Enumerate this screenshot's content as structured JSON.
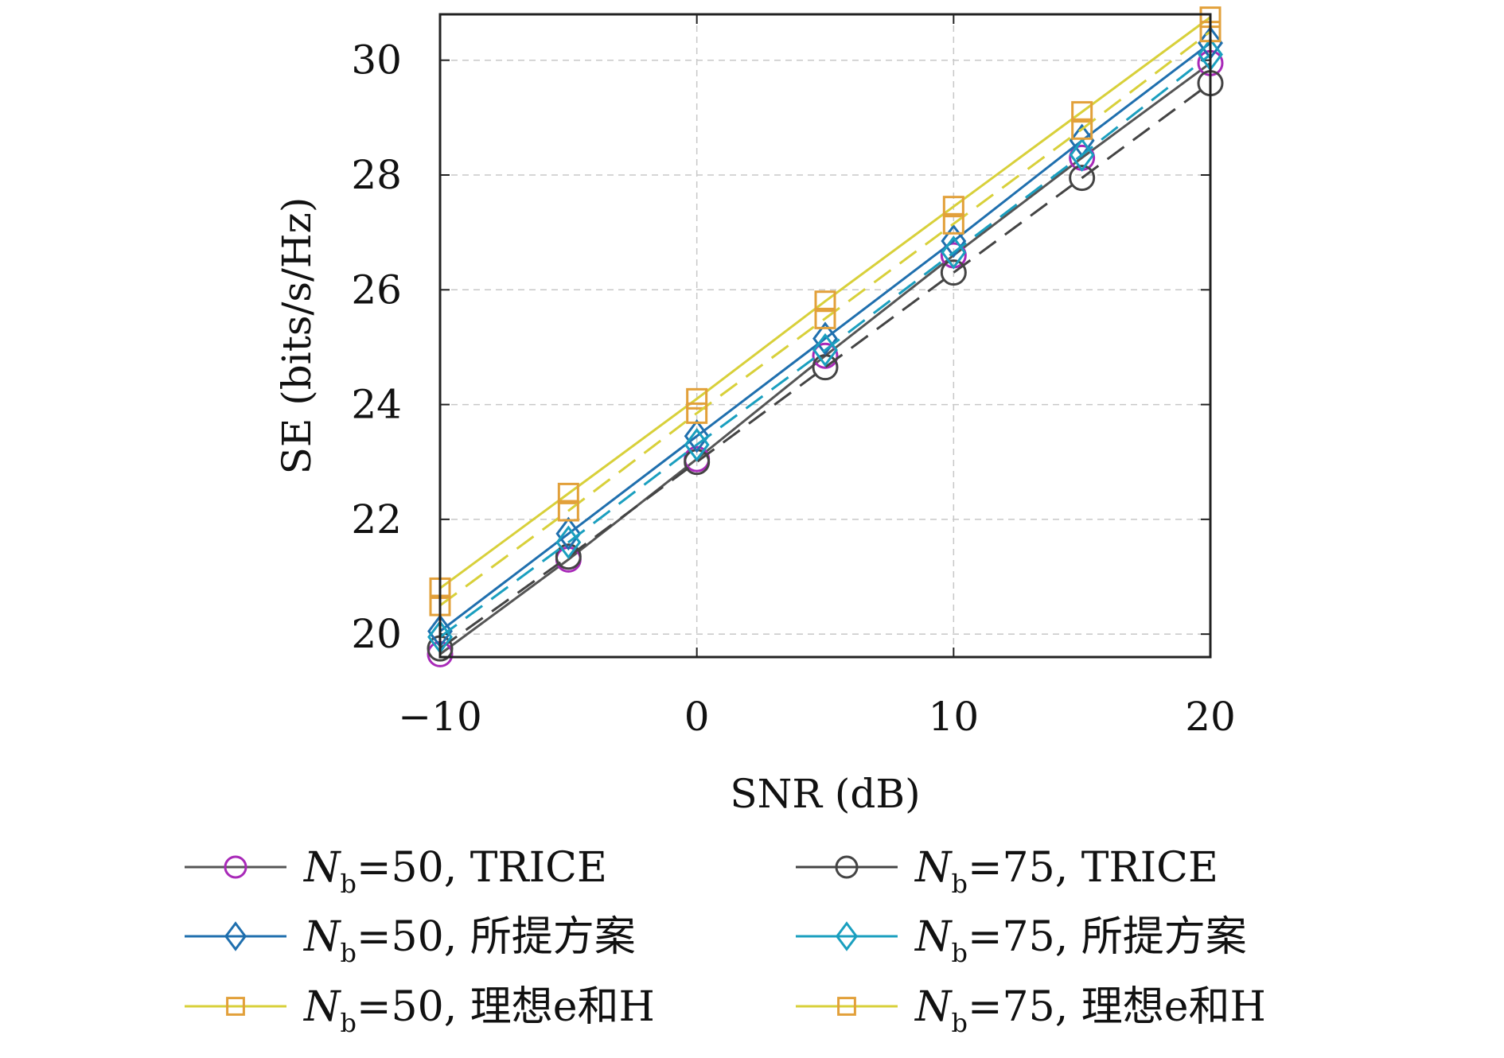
{
  "chart_data": {
    "type": "line",
    "title": "",
    "xlabel": "SNR (dB)",
    "ylabel": "SE (bits/s/Hz)",
    "xlim": [
      -10,
      20
    ],
    "ylim": [
      19.6,
      30.8
    ],
    "xticks": [
      -10,
      0,
      10,
      20
    ],
    "xtick_labels": [
      "−10",
      "0",
      "10",
      "20"
    ],
    "yticks": [
      20,
      22,
      24,
      26,
      28,
      30
    ],
    "ytick_labels": [
      "20",
      "22",
      "24",
      "26",
      "28",
      "30"
    ],
    "grid": true,
    "legend_position": "bottom",
    "x": [
      -10,
      -5,
      0,
      5,
      10,
      15,
      20
    ],
    "series": [
      {
        "name": "N_b=50, TRICE",
        "legend_main": "N",
        "legend_sub": "b",
        "legend_rest": "=50, TRICE",
        "color": "#a829b8",
        "line_color": "#555555",
        "marker": "circle",
        "dash": "solid",
        "values": [
          19.65,
          21.3,
          23.05,
          24.85,
          26.6,
          28.3,
          29.95
        ]
      },
      {
        "name": "N_b=75, TRICE",
        "legend_main": "N",
        "legend_sub": "b",
        "legend_rest": "=75, TRICE",
        "color": "#444444",
        "line_color": "#444444",
        "marker": "circle",
        "dash": "dashed",
        "values": [
          19.75,
          21.35,
          23.0,
          24.65,
          26.3,
          27.95,
          29.6
        ]
      },
      {
        "name": "N_b=50, 所提方案",
        "legend_main": "N",
        "legend_sub": "b",
        "legend_rest": "=50, 所提方案",
        "color": "#1f6fae",
        "line_color": "#1f6fae",
        "marker": "diamond",
        "dash": "solid",
        "values": [
          20.05,
          21.75,
          23.45,
          25.15,
          26.85,
          28.6,
          30.3
        ]
      },
      {
        "name": "N_b=75, 所提方案",
        "legend_main": "N",
        "legend_sub": "b",
        "legend_rest": "=75, 所提方案",
        "color": "#1a9fbf",
        "line_color": "#1a9fbf",
        "marker": "diamond",
        "dash": "dashed",
        "values": [
          19.95,
          21.6,
          23.3,
          24.95,
          26.65,
          28.35,
          30.1
        ]
      },
      {
        "name": "N_b=50, 理想e和H",
        "legend_main": "N",
        "legend_sub": "b",
        "legend_rest": "=50, 理想e和H",
        "color": "#e2a03a",
        "line_color": "#d8d03a",
        "marker": "square",
        "dash": "solid",
        "values": [
          20.8,
          22.45,
          24.1,
          25.8,
          27.45,
          29.1,
          30.75
        ]
      },
      {
        "name": "N_b=75, 理想e和H",
        "legend_main": "N",
        "legend_sub": "b",
        "legend_rest": "=75, 理想e和H",
        "color": "#e2a03a",
        "line_color": "#d8d03a",
        "marker": "square",
        "dash": "dashed",
        "values": [
          20.5,
          22.15,
          23.85,
          25.5,
          27.15,
          28.8,
          30.5
        ]
      }
    ]
  },
  "legend_order": [
    0,
    1,
    2,
    3,
    4,
    5
  ]
}
